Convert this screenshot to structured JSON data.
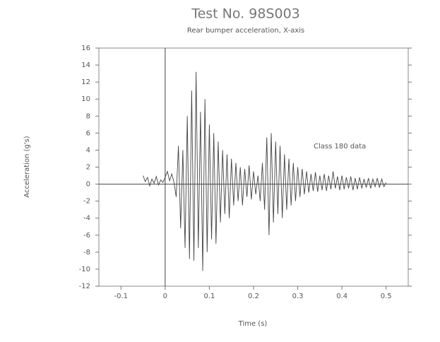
{
  "chart_data": {
    "type": "line",
    "title": "Test No. 98S003",
    "subtitle": "Rear bumper acceleration, X-axis",
    "x_label": "Time (s)",
    "y_label": "Acceleration (g's)",
    "annotation": "Class 180 data",
    "color": "#444444",
    "xlim": [
      -0.15,
      0.55
    ],
    "xticks": [
      -0.1,
      0,
      0.1,
      0.2,
      0.3,
      0.4,
      0.5
    ],
    "ylim": [
      -12,
      16
    ],
    "yticks": [
      -12,
      -10,
      -8,
      -6,
      -4,
      -2,
      0,
      2,
      4,
      6,
      8,
      10,
      12,
      14,
      16
    ],
    "x": [
      -0.05,
      -0.045,
      -0.04,
      -0.035,
      -0.03,
      -0.025,
      -0.02,
      -0.015,
      -0.01,
      -0.005,
      0,
      0.005,
      0.01,
      0.015,
      0.02,
      0.025,
      0.03,
      0.035,
      0.04,
      0.045,
      0.05,
      0.055,
      0.06,
      0.065,
      0.07,
      0.075,
      0.08,
      0.085,
      0.09,
      0.095,
      0.1,
      0.105,
      0.11,
      0.115,
      0.12,
      0.125,
      0.13,
      0.135,
      0.14,
      0.145,
      0.15,
      0.155,
      0.16,
      0.165,
      0.17,
      0.175,
      0.18,
      0.185,
      0.19,
      0.195,
      0.2,
      0.205,
      0.21,
      0.215,
      0.22,
      0.225,
      0.23,
      0.235,
      0.24,
      0.245,
      0.25,
      0.255,
      0.26,
      0.265,
      0.27,
      0.275,
      0.28,
      0.285,
      0.29,
      0.295,
      0.3,
      0.305,
      0.31,
      0.315,
      0.32,
      0.325,
      0.33,
      0.335,
      0.34,
      0.345,
      0.35,
      0.355,
      0.36,
      0.365,
      0.37,
      0.375,
      0.38,
      0.385,
      0.39,
      0.395,
      0.4,
      0.405,
      0.41,
      0.415,
      0.42,
      0.425,
      0.43,
      0.435,
      0.44,
      0.445,
      0.45,
      0.455,
      0.46,
      0.465,
      0.47,
      0.475,
      0.48,
      0.485,
      0.49,
      0.495,
      0.5
    ],
    "values": [
      1.0,
      0.3,
      0.8,
      -0.2,
      0.6,
      0.1,
      0.9,
      -0.1,
      0.5,
      0.2,
      0.8,
      1.5,
      0.4,
      1.2,
      0.2,
      -1.5,
      4.5,
      -5.2,
      4.0,
      -7.5,
      8.0,
      -8.8,
      11.0,
      -9.0,
      13.2,
      -7.5,
      8.5,
      -10.2,
      10.0,
      -8.0,
      7.0,
      -6.5,
      6.0,
      -7.0,
      5.0,
      -4.5,
      4.0,
      -3.5,
      3.5,
      -4.0,
      3.0,
      -2.5,
      2.5,
      -2.0,
      2.0,
      -2.5,
      1.8,
      -1.5,
      2.2,
      -1.8,
      1.5,
      -1.2,
      1.0,
      -2.0,
      2.5,
      -3.0,
      5.5,
      -6.0,
      6.0,
      -4.5,
      5.0,
      -3.5,
      4.5,
      -4.0,
      3.5,
      -3.0,
      3.0,
      -2.5,
      2.5,
      -2.0,
      2.0,
      -1.5,
      1.8,
      -1.2,
      1.5,
      -1.0,
      1.2,
      -0.8,
      1.4,
      -0.9,
      1.0,
      -0.7,
      1.2,
      -0.8,
      1.0,
      -0.6,
      1.5,
      -0.5,
      0.9,
      -0.7,
      1.0,
      -0.6,
      0.8,
      -0.5,
      0.9,
      -0.7,
      0.7,
      -0.6,
      0.8,
      -0.5,
      0.6,
      -0.4,
      0.7,
      -0.5,
      0.6,
      -0.3,
      0.7,
      -0.4,
      0.6,
      -0.3,
      0.2
    ]
  }
}
